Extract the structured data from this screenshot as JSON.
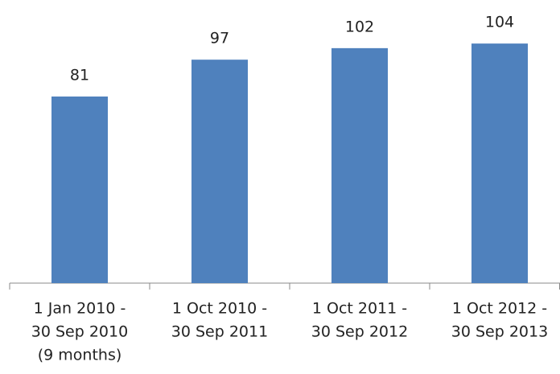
{
  "chart_data": {
    "type": "bar",
    "categories": [
      [
        "1 Jan 2010 -",
        "30 Sep 2010",
        "(9 months)"
      ],
      [
        "1 Oct 2010 -",
        "30 Sep 2011"
      ],
      [
        "1 Oct 2011 -",
        "30 Sep 2012"
      ],
      [
        "1 Oct 2012 -",
        "30 Sep 2013"
      ]
    ],
    "values": [
      81,
      97,
      102,
      104
    ],
    "color": "#4f81bd"
  }
}
